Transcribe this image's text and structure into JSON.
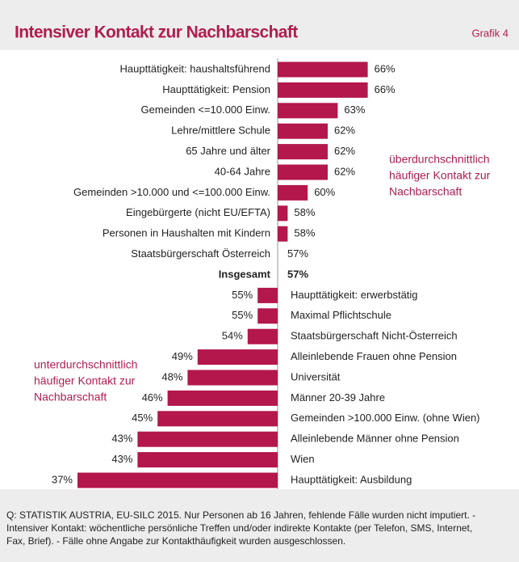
{
  "chart_data": {
    "type": "bar",
    "title": "Intensiver Kontakt zur Nachbarschaft",
    "figure_label": "Grafik 4",
    "orientation": "horizontal",
    "color": "#b3174b",
    "total_category": "Insgesamt",
    "xlim": [
      36,
      67
    ],
    "categories": [
      "Haupttätigkeit: haushaltsführend",
      "Haupttätigkeit: Pension",
      "Gemeinden <=10.000 Einw.",
      "Lehre/mittlere Schule",
      "65 Jahre und älter",
      "40-64 Jahre",
      "Gemeinden >10.000 und <=100.000 Einw.",
      "Eingebürgerte (nicht EU/EFTA)",
      "Personen in Haushalten mit Kindern",
      "Staatsbürgerschaft Österreich",
      "Insgesamt",
      "Haupttätigkeit: erwerbstätig",
      "Maximal Pflichtschule",
      "Staatsbürgerschaft Nicht-Österreich",
      "Alleinlebende Frauen ohne Pension",
      "Universität",
      "Männer 20-39 Jahre",
      "Gemeinden >100.000 Einw. (ohne Wien)",
      "Alleinlebende Männer ohne Pension",
      "Wien",
      "Haupttätigkeit: Ausbildung"
    ],
    "values": [
      66,
      66,
      63,
      62,
      62,
      62,
      60,
      58,
      58,
      57,
      57,
      55,
      55,
      54,
      49,
      48,
      46,
      45,
      43,
      43,
      37
    ],
    "value_labels": [
      "66%",
      "66%",
      "63%",
      "62%",
      "62%",
      "62%",
      "60%",
      "58%",
      "58%",
      "57%",
      "57%",
      "55%",
      "55%",
      "54%",
      "49%",
      "48%",
      "46%",
      "45%",
      "43%",
      "43%",
      "37%"
    ],
    "annotations": [
      {
        "lines": [
          "überdurchschnittlich",
          "häufiger Kontakt zur",
          "Nachbarschaft"
        ]
      },
      {
        "lines": [
          "unterdurchschnittlich",
          "häufiger Kontakt zur",
          "Nachbarschaft"
        ]
      }
    ],
    "source": [
      "Q: STATISTIK AUSTRIA, EU-SILC 2015. Nur Personen ab 16 Jahren, fehlende Fälle wurden nicht imputiert. -",
      "Intensiver Kontakt: wöchentliche persönliche Treffen und/oder indirekte Kontakte (per Telefon, SMS, Internet,",
      "Fax, Brief). - Fälle ohne Angabe zur Kontakthäufigkeit wurden ausgeschlossen."
    ]
  }
}
